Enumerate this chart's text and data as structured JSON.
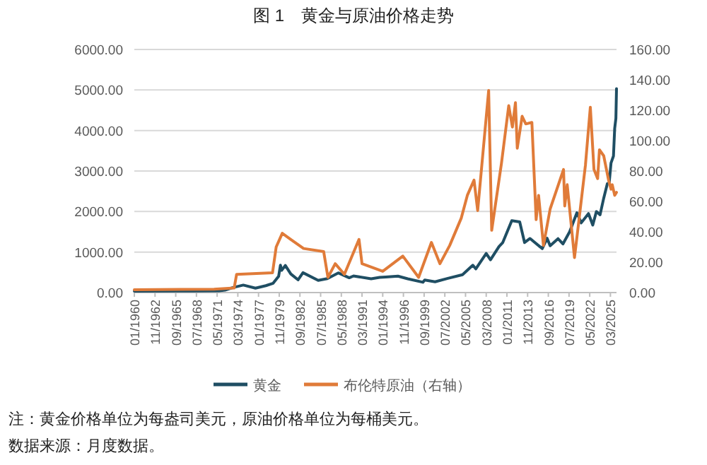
{
  "chart_data": {
    "type": "line",
    "title": "图 1　黄金与原油价格走势",
    "xlim": [
      "1960-01",
      "2026-01"
    ],
    "xticks": [
      {
        "value": "1960-01",
        "label": "01/1960"
      },
      {
        "value": "1962-11",
        "label": "11/1962"
      },
      {
        "value": "1965-09",
        "label": "09/1965"
      },
      {
        "value": "1968-07",
        "label": "07/1968"
      },
      {
        "value": "1971-05",
        "label": "05/1971"
      },
      {
        "value": "1974-03",
        "label": "03/1974"
      },
      {
        "value": "1977-01",
        "label": "01/1977"
      },
      {
        "value": "1979-11",
        "label": "11/1979"
      },
      {
        "value": "1982-09",
        "label": "09/1982"
      },
      {
        "value": "1985-07",
        "label": "07/1985"
      },
      {
        "value": "1988-05",
        "label": "05/1988"
      },
      {
        "value": "1991-03",
        "label": "03/1991"
      },
      {
        "value": "1994-01",
        "label": "01/1994"
      },
      {
        "value": "1996-11",
        "label": "11/1996"
      },
      {
        "value": "1999-09",
        "label": "09/1999"
      },
      {
        "value": "2002-07",
        "label": "07/2002"
      },
      {
        "value": "2005-05",
        "label": "05/2005"
      },
      {
        "value": "2008-03",
        "label": "03/2008"
      },
      {
        "value": "2011-01",
        "label": "01/2011"
      },
      {
        "value": "2013-11",
        "label": "11/2013"
      },
      {
        "value": "2016-09",
        "label": "09/2016"
      },
      {
        "value": "2019-07",
        "label": "07/2019"
      },
      {
        "value": "2022-05",
        "label": "05/2022"
      },
      {
        "value": "2025-03",
        "label": "03/2025"
      }
    ],
    "ylim": [
      0,
      6000
    ],
    "yticks": [
      {
        "value": 0,
        "label": "0.00"
      },
      {
        "value": 1000,
        "label": "1000.00"
      },
      {
        "value": 2000,
        "label": "2000.00"
      },
      {
        "value": 3000,
        "label": "3000.00"
      },
      {
        "value": 4000,
        "label": "4000.00"
      },
      {
        "value": 5000,
        "label": "5000.00"
      },
      {
        "value": 6000,
        "label": "6000.00"
      }
    ],
    "y2lim": [
      0,
      160
    ],
    "y2ticks": [
      {
        "value": 0,
        "label": "0.00"
      },
      {
        "value": 20,
        "label": "20.00"
      },
      {
        "value": 40,
        "label": "40.00"
      },
      {
        "value": 60,
        "label": "60.00"
      },
      {
        "value": 80,
        "label": "80.00"
      },
      {
        "value": 100,
        "label": "100.00"
      },
      {
        "value": 120,
        "label": "120.00"
      },
      {
        "value": 140,
        "label": "140.00"
      },
      {
        "value": 160,
        "label": "160.00"
      }
    ],
    "grid": "y",
    "legend": "bottom",
    "series": [
      {
        "name": "黄金",
        "color": "#1f4e63",
        "x": [
          "1960-01",
          "1968-03",
          "1971-08",
          "1972-06",
          "1973-06",
          "1974-12",
          "1976-08",
          "1978-01",
          "1979-01",
          "1979-10",
          "1980-01",
          "1980-03",
          "1980-09",
          "1981-06",
          "1982-06",
          "1983-02",
          "1985-03",
          "1986-06",
          "1987-12",
          "1989-06",
          "1990-01",
          "1992-06",
          "1993-08",
          "1994-06",
          "1996-02",
          "1997-06",
          "1999-07",
          "1999-10",
          "2001-03",
          "2002-12",
          "2004-12",
          "2006-05",
          "2006-10",
          "2008-03",
          "2008-10",
          "2009-12",
          "2010-06",
          "2011-09",
          "2012-10",
          "2013-06",
          "2014-03",
          "2015-11",
          "2016-07",
          "2016-12",
          "2018-01",
          "2018-09",
          "2019-08",
          "2020-08",
          "2021-03",
          "2022-03",
          "2022-10",
          "2023-04",
          "2023-10",
          "2024-04",
          "2024-10",
          "2025-01",
          "2025-04",
          "2025-08",
          "2025-10",
          "2025-12",
          "2026-01"
        ],
        "values": [
          35,
          38,
          42,
          60,
          120,
          185,
          110,
          170,
          230,
          400,
          675,
          550,
          670,
          460,
          315,
          490,
          300,
          345,
          485,
          365,
          410,
          340,
          375,
          385,
          405,
          340,
          255,
          310,
          265,
          350,
          440,
          675,
          585,
          965,
          810,
          1135,
          1230,
          1775,
          1745,
          1235,
          1335,
          1085,
          1340,
          1155,
          1330,
          1200,
          1500,
          1970,
          1720,
          1950,
          1665,
          2000,
          1920,
          2330,
          2690,
          2710,
          3200,
          3370,
          4050,
          4300,
          5030
        ]
      },
      {
        "name": "布伦特原油（右轴）",
        "color": "#e07b39",
        "axis": "y2",
        "x": [
          "1960-01",
          "1970-12",
          "1973-09",
          "1974-01",
          "1978-12",
          "1979-06",
          "1980-04",
          "1981-06",
          "1983-03",
          "1985-12",
          "1986-07",
          "1987-07",
          "1988-10",
          "1990-10",
          "1991-03",
          "1994-01",
          "1996-10",
          "1998-12",
          "2000-09",
          "2001-11",
          "2003-03",
          "2004-10",
          "2005-08",
          "2006-07",
          "2007-01",
          "2008-07",
          "2008-12",
          "2010-04",
          "2011-04",
          "2011-10",
          "2012-03",
          "2012-06",
          "2013-02",
          "2013-08",
          "2014-06",
          "2015-01",
          "2015-05",
          "2016-01",
          "2016-12",
          "2018-10",
          "2018-12",
          "2019-04",
          "2020-04",
          "2020-12",
          "2021-10",
          "2022-06",
          "2022-12",
          "2023-06",
          "2023-09",
          "2024-04",
          "2024-12",
          "2025-04",
          "2025-06",
          "2025-10",
          "2026-01"
        ],
        "values": [
          1.9,
          2.2,
          3,
          12,
          13,
          30,
          39,
          35,
          29,
          27,
          10,
          19,
          12,
          35,
          19,
          14,
          24,
          10,
          33,
          19,
          31,
          49,
          64,
          74,
          54,
          133,
          41,
          85,
          123,
          109,
          125,
          95,
          116,
          111,
          112,
          48,
          64,
          31,
          55,
          81,
          57,
          71,
          23,
          50,
          84,
          122,
          81,
          75,
          94,
          90,
          74,
          68,
          71,
          64,
          66
        ]
      }
    ],
    "annotations": [
      "注：黄金价格单位为每盎司美元，原油价格单位为每桶美元。",
      "数据来源：月度数据。"
    ]
  }
}
